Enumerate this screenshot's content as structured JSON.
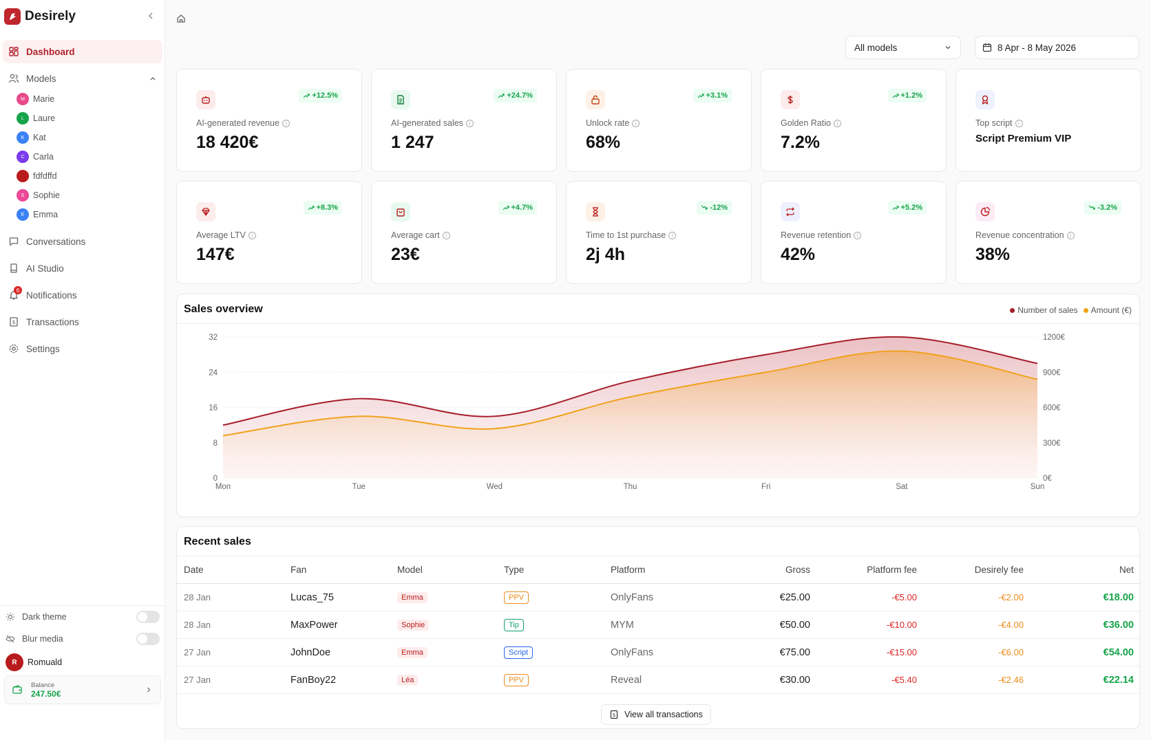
{
  "app": {
    "name": "Desirely"
  },
  "sidebar": {
    "dashboard": "Dashboard",
    "models_label": "Models",
    "models": [
      {
        "initial": "M",
        "name": "Marie",
        "color": "#e84a8a"
      },
      {
        "initial": "L",
        "name": "Laure",
        "color": "#16a34a"
      },
      {
        "initial": "K",
        "name": "Kat",
        "color": "#3b82f6"
      },
      {
        "initial": "C",
        "name": "Carla",
        "color": "#7c3aed"
      },
      {
        "initial": "",
        "name": "fdfdffd",
        "color": "#b91c1c"
      },
      {
        "initial": "S",
        "name": "Sophie",
        "color": "#ec4899"
      },
      {
        "initial": "E",
        "name": "Emma",
        "color": "#3b82f6"
      }
    ],
    "conversations": "Conversations",
    "ai_studio": "AI Studio",
    "notifications": "Notifications",
    "notifications_count": "6",
    "transactions": "Transactions",
    "settings": "Settings",
    "dark_theme": "Dark theme",
    "blur_media": "Blur media",
    "user_name": "Romuald",
    "user_initial": "R",
    "balance_label": "Balance",
    "balance_value": "247.50€"
  },
  "filters": {
    "models": "All models",
    "date_range": "8 Apr - 8 May 2026"
  },
  "kpis": [
    {
      "label": "AI-generated revenue",
      "value": "18 420€",
      "delta": "+12.5%",
      "dir": "up",
      "icon": "robot-icon",
      "bg": "#fdecec",
      "fg": "#b91c1c"
    },
    {
      "label": "AI-generated sales",
      "value": "1 247",
      "delta": "+24.7%",
      "dir": "up",
      "icon": "document-icon",
      "bg": "#e9f9ef",
      "fg": "#15803d"
    },
    {
      "label": "Unlock rate",
      "value": "68%",
      "delta": "+3.1%",
      "dir": "up",
      "icon": "unlock-icon",
      "bg": "#fdf1e6",
      "fg": "#c2410c"
    },
    {
      "label": "Golden Ratio",
      "value": "7.2%",
      "delta": "+1.2%",
      "dir": "up",
      "icon": "dollar-icon",
      "bg": "#fdecec",
      "fg": "#b91c1c"
    },
    {
      "label": "Top script",
      "value": "Script Premium VIP",
      "delta": "",
      "dir": "",
      "icon": "award-icon",
      "bg": "#eef2fd",
      "fg": "#b91c1c"
    },
    {
      "label": "Average LTV",
      "value": "147€",
      "delta": "+8.3%",
      "dir": "up",
      "icon": "gem-icon",
      "bg": "#fdecec",
      "fg": "#b91c1c"
    },
    {
      "label": "Average cart",
      "value": "23€",
      "delta": "+4.7%",
      "dir": "up",
      "icon": "shopping-bag-icon",
      "bg": "#e9f9ef",
      "fg": "#b91c1c"
    },
    {
      "label": "Time to 1st purchase",
      "value": "2j 4h",
      "delta": "-12%",
      "dir": "down",
      "icon": "hourglass-icon",
      "bg": "#fdf1e6",
      "fg": "#b91c1c"
    },
    {
      "label": "Revenue retention",
      "value": "42%",
      "delta": "+5.2%",
      "dir": "up",
      "icon": "repeat-icon",
      "bg": "#eef0fd",
      "fg": "#b91c1c"
    },
    {
      "label": "Revenue concentration",
      "value": "38%",
      "delta": "-3.2%",
      "dir": "down",
      "icon": "pie-chart-icon",
      "bg": "#fcecf5",
      "fg": "#b91c1c"
    }
  ],
  "sales_overview": {
    "title": "Sales overview",
    "legend": [
      "Number of sales",
      "Amount (€)"
    ],
    "colors": {
      "sales": "#a61e2a",
      "amount": "#f0a21c"
    }
  },
  "chart_data": {
    "type": "area",
    "x": [
      "Mon",
      "Tue",
      "Wed",
      "Thu",
      "Fri",
      "Sat",
      "Sun"
    ],
    "series": [
      {
        "name": "Number of sales",
        "axis": "left",
        "values": [
          12,
          18,
          14,
          22,
          28,
          32,
          26
        ]
      },
      {
        "name": "Amount (€)",
        "axis": "right",
        "values": [
          360,
          525,
          420,
          690,
          900,
          1080,
          840
        ]
      }
    ],
    "y_left": {
      "ticks": [
        "0",
        "8",
        "16",
        "24",
        "32"
      ],
      "lim": [
        0,
        32
      ]
    },
    "y_right": {
      "ticks": [
        "0€",
        "300€",
        "600€",
        "900€",
        "1200€"
      ],
      "lim": [
        0,
        1200
      ]
    },
    "grid": true,
    "legend": "top-right"
  },
  "recent_sales": {
    "title": "Recent sales",
    "columns": [
      "Date",
      "Fan",
      "Model",
      "Type",
      "Platform",
      "Gross",
      "Platform fee",
      "Desirely fee",
      "Net"
    ],
    "rows": [
      {
        "date": "28 Jan",
        "fan": "Lucas_75",
        "model": "Emma",
        "type": "PPV",
        "type_color": "#ea8c1c",
        "platform": "OnlyFans",
        "gross": "€25.00",
        "platform_fee": "-€5.00",
        "desirely_fee": "-€2.00",
        "net": "€18.00"
      },
      {
        "date": "28 Jan",
        "fan": "MaxPower",
        "model": "Sophie",
        "type": "Tip",
        "type_color": "#0f9f6e",
        "platform": "MYM",
        "gross": "€50.00",
        "platform_fee": "-€10.00",
        "desirely_fee": "-€4.00",
        "net": "€36.00"
      },
      {
        "date": "27 Jan",
        "fan": "JohnDoe",
        "model": "Emma",
        "type": "Script",
        "type_color": "#2563eb",
        "platform": "OnlyFans",
        "gross": "€75.00",
        "platform_fee": "-€15.00",
        "desirely_fee": "-€6.00",
        "net": "€54.00"
      },
      {
        "date": "27 Jan",
        "fan": "FanBoy22",
        "model": "Léa",
        "type": "PPV",
        "type_color": "#ea8c1c",
        "platform": "Reveal",
        "gross": "€30.00",
        "platform_fee": "-€5.40",
        "desirely_fee": "-€2.46",
        "net": "€22.14"
      }
    ],
    "view_all": "View all transactions"
  }
}
